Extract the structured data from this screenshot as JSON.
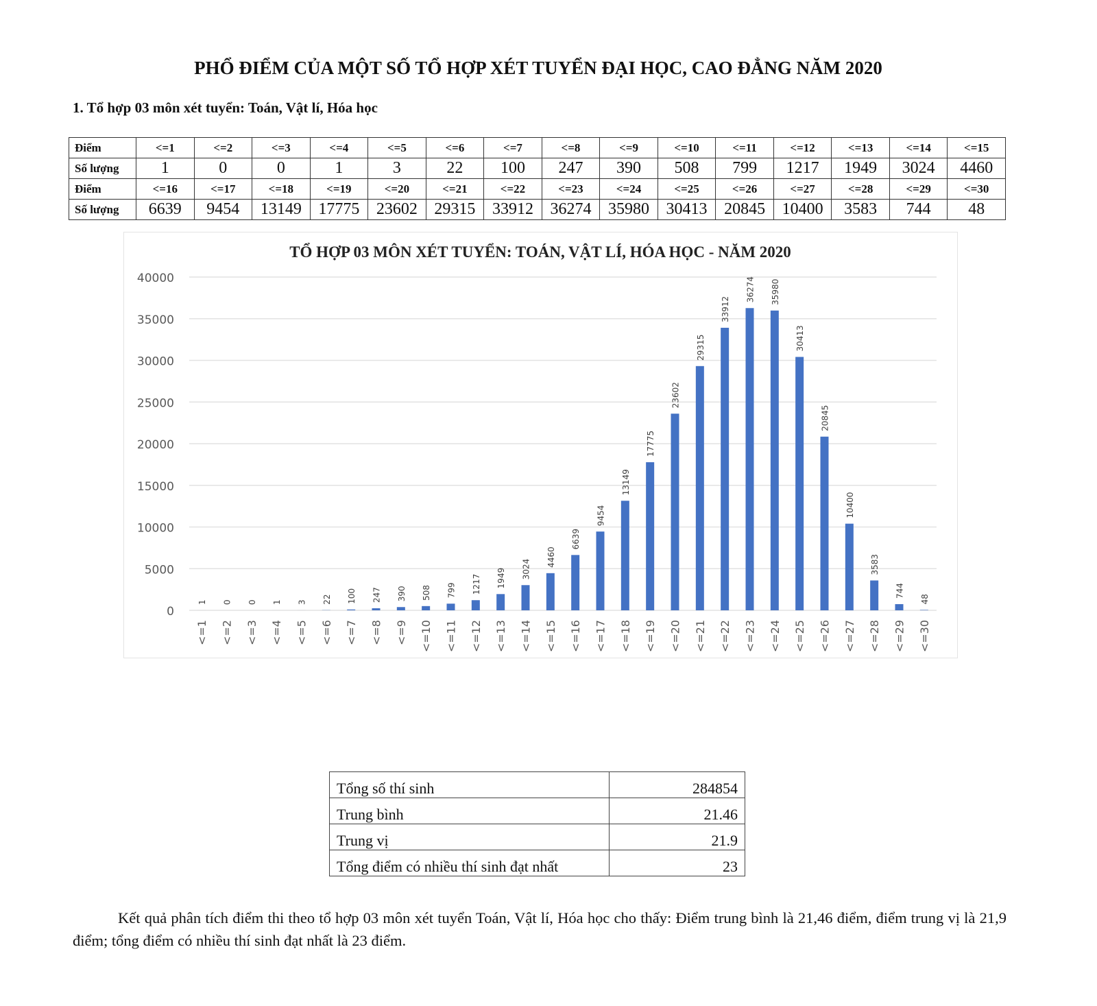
{
  "title": "PHỔ ĐIỂM CỦA MỘT SỐ TỔ HỢP XÉT TUYỂN ĐẠI HỌC, CAO ĐẲNG NĂM 2020",
  "subheading": "1. Tổ hợp 03 môn xét tuyển: Toán, Vật lí, Hóa học",
  "dist_table": {
    "row_label_score": "Điểm",
    "row_label_count": "Số lượng",
    "blocks": [
      {
        "scores": [
          "<=1",
          "<=2",
          "<=3",
          "<=4",
          "<=5",
          "<=6",
          "<=7",
          "<=8",
          "<=9",
          "<=10",
          "<=11",
          "<=12",
          "<=13",
          "<=14",
          "<=15"
        ],
        "counts": [
          "1",
          "0",
          "0",
          "1",
          "3",
          "22",
          "100",
          "247",
          "390",
          "508",
          "799",
          "1217",
          "1949",
          "3024",
          "4460"
        ]
      },
      {
        "scores": [
          "<=16",
          "<=17",
          "<=18",
          "<=19",
          "<=20",
          "<=21",
          "<=22",
          "<=23",
          "<=24",
          "<=25",
          "<=26",
          "<=27",
          "<=28",
          "<=29",
          "<=30"
        ],
        "counts": [
          "6639",
          "9454",
          "13149",
          "17775",
          "23602",
          "29315",
          "33912",
          "36274",
          "35980",
          "30413",
          "20845",
          "10400",
          "3583",
          "744",
          "48"
        ]
      }
    ]
  },
  "chart_data": {
    "type": "bar",
    "title": "TỔ HỢP 03 MÔN XÉT TUYỂN: TOÁN, VẬT LÍ, HÓA HỌC - NĂM 2020",
    "xlabel": "",
    "ylabel": "",
    "categories": [
      "<=1",
      "<=2",
      "<=3",
      "<=4",
      "<=5",
      "<=6",
      "<=7",
      "<=8",
      "<=9",
      "<=10",
      "<=11",
      "<=12",
      "<=13",
      "<=14",
      "<=15",
      "<=16",
      "<=17",
      "<=18",
      "<=19",
      "<=20",
      "<=21",
      "<=22",
      "<=23",
      "<=24",
      "<=25",
      "<=26",
      "<=27",
      "<=28",
      "<=29",
      "<=30"
    ],
    "values": [
      1,
      0,
      0,
      1,
      3,
      22,
      100,
      247,
      390,
      508,
      799,
      1217,
      1949,
      3024,
      4460,
      6639,
      9454,
      13149,
      17775,
      23602,
      29315,
      33912,
      36274,
      35980,
      30413,
      20845,
      10400,
      3583,
      744,
      48
    ],
    "ylim": [
      0,
      40000
    ],
    "yticks": [
      0,
      5000,
      10000,
      15000,
      20000,
      25000,
      30000,
      35000,
      40000
    ],
    "grid": true,
    "data_labels": true,
    "bar_color": "#4472C4"
  },
  "stats": [
    {
      "label": "Tổng số thí sinh",
      "value": "284854"
    },
    {
      "label": "Trung bình",
      "value": "21.46"
    },
    {
      "label": "Trung vị",
      "value": "21.9"
    },
    {
      "label": "Tổng điểm có nhiều thí sinh đạt nhất",
      "value": "23"
    }
  ],
  "paragraph": "Kết quả phân tích điểm thi theo tổ hợp 03 môn xét tuyển Toán, Vật lí, Hóa học cho thấy: Điểm trung bình là 21,46 điểm, điểm trung vị là 21,9 điểm; tổng điểm có nhiều thí sinh đạt nhất là 23 điểm."
}
